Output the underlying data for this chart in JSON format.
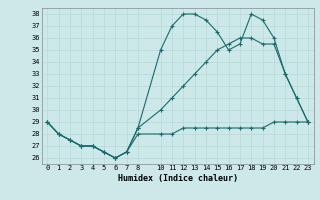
{
  "title": "",
  "xlabel": "Humidex (Indice chaleur)",
  "bg_color": "#cce8e8",
  "line_color": "#1a6b6b",
  "grid_color": "#b8d8d8",
  "xlim": [
    -0.5,
    23.5
  ],
  "ylim": [
    25.5,
    38.5
  ],
  "xticks": [
    0,
    1,
    2,
    3,
    4,
    5,
    6,
    7,
    8,
    10,
    11,
    12,
    13,
    14,
    15,
    16,
    17,
    18,
    19,
    20,
    21,
    22,
    23
  ],
  "yticks": [
    26,
    27,
    28,
    29,
    30,
    31,
    32,
    33,
    34,
    35,
    36,
    37,
    38
  ],
  "line1_x": [
    0,
    1,
    2,
    3,
    4,
    5,
    6,
    7,
    8,
    10,
    11,
    12,
    13,
    14,
    15,
    16,
    17,
    18,
    19,
    20,
    21,
    22,
    23
  ],
  "line1_y": [
    29,
    28,
    27.5,
    27,
    27,
    26.5,
    26,
    26.5,
    28,
    28,
    28,
    28.5,
    28.5,
    28.5,
    28.5,
    28.5,
    28.5,
    28.5,
    28.5,
    29,
    29,
    29,
    29
  ],
  "line2_x": [
    0,
    1,
    2,
    3,
    4,
    5,
    6,
    7,
    8,
    10,
    11,
    12,
    13,
    14,
    15,
    16,
    17,
    18,
    19,
    20,
    21,
    22,
    23
  ],
  "line2_y": [
    29,
    28,
    27.5,
    27,
    27,
    26.5,
    26,
    26.5,
    28.5,
    30,
    31,
    32,
    33,
    34,
    35,
    35.5,
    36,
    36,
    35.5,
    35.5,
    33,
    31,
    29
  ],
  "line3_x": [
    0,
    1,
    2,
    3,
    4,
    5,
    6,
    7,
    8,
    10,
    11,
    12,
    13,
    14,
    15,
    16,
    17,
    18,
    19,
    20,
    21,
    22,
    23
  ],
  "line3_y": [
    29,
    28,
    27.5,
    27,
    27,
    26.5,
    26,
    26.5,
    28.5,
    35,
    37,
    38,
    38,
    37.5,
    36.5,
    35,
    35.5,
    38,
    37.5,
    36,
    33,
    31,
    29
  ]
}
